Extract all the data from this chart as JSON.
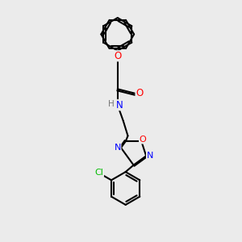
{
  "bg_color": "#ebebeb",
  "bond_color": "#000000",
  "bond_width": 1.5,
  "figsize": [
    3.0,
    3.0
  ],
  "dpi": 100,
  "atom_colors": {
    "O": "#ff0000",
    "N": "#0000ff",
    "Cl": "#00bb00",
    "C": "#000000",
    "H": "#777777"
  }
}
